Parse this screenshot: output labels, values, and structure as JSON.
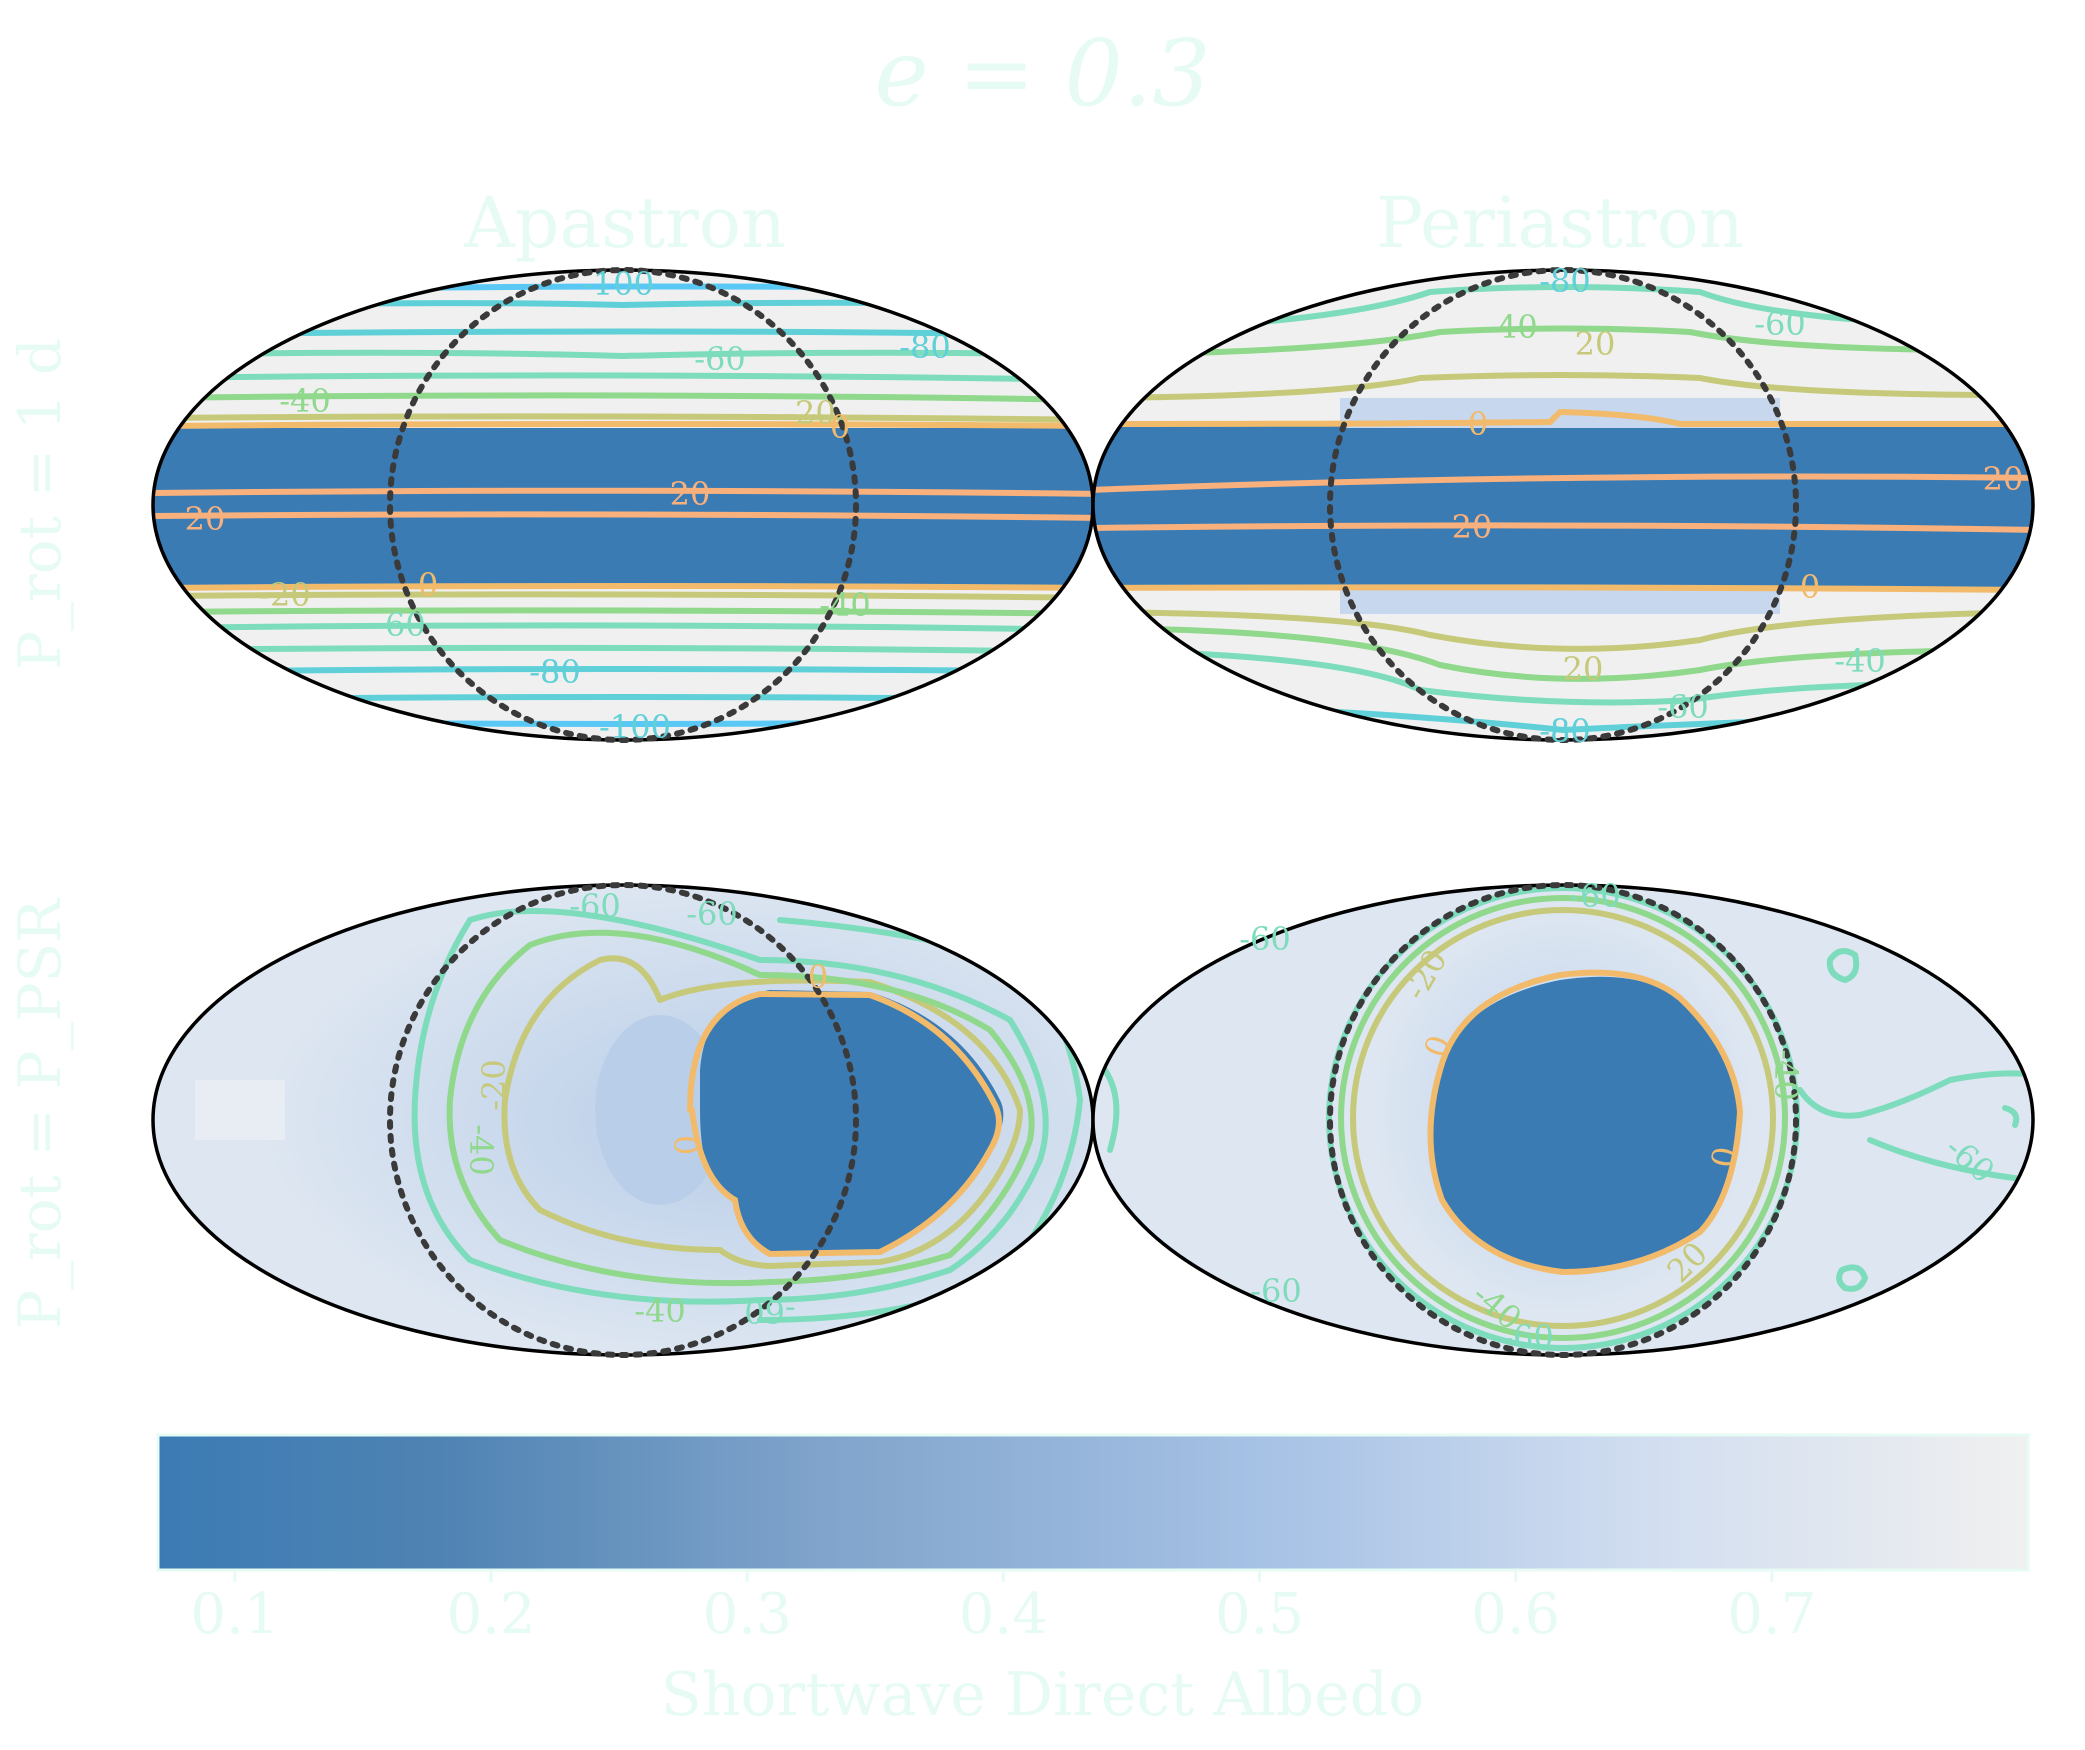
{
  "figure": {
    "title": "e = 0.3",
    "column_titles": [
      "Apastron",
      "Periastron"
    ],
    "row_labels": [
      "P_rot = 1 d",
      "P_rot = P_PSR"
    ]
  },
  "colors": {
    "ocean": "#3b7bb4",
    "ice": "#f0f0f0",
    "light_albedo": "#dde6f1",
    "text": "#e6fbf3",
    "contour_m100": "#5ac8f5",
    "contour_m80": "#5fd0d8",
    "contour_m60": "#7ddcbc",
    "contour_m40": "#8fd88c",
    "contour_m20": "#c7c97a",
    "contour_0": "#f2bb6c",
    "contour_20": "#f8b07c"
  },
  "chart_data": [
    {
      "type": "heatmap",
      "projection": "mollweide",
      "panel": "P_rot = 1 d, Apastron",
      "field": "Shortwave Direct Albedo",
      "overlay": "surface temperature contours",
      "contour_labels": [
        "-100",
        "-80",
        "-60",
        "-40",
        "-20",
        "0",
        "20",
        "20",
        "0",
        "-20",
        "-60",
        "-80",
        "-100",
        "-40"
      ]
    },
    {
      "type": "heatmap",
      "projection": "mollweide",
      "panel": "P_rot = 1 d, Periastron",
      "field": "Shortwave Direct Albedo",
      "overlay": "surface temperature contours",
      "contour_labels": [
        "-80",
        "-60",
        "-40",
        "20",
        "0",
        "20",
        "20",
        "0",
        "20",
        "-40",
        "-60",
        "-80"
      ]
    },
    {
      "type": "heatmap",
      "projection": "mollweide",
      "panel": "P_rot = P_PSR, Apastron",
      "field": "Shortwave Direct Albedo",
      "overlay": "surface temperature contours",
      "contour_labels": [
        "-60",
        "-60",
        "-20",
        "-40",
        "0",
        "-40",
        "-60",
        "0"
      ]
    },
    {
      "type": "heatmap",
      "projection": "mollweide",
      "panel": "P_rot = P_PSR, Periastron",
      "field": "Shortwave Direct Albedo",
      "overlay": "surface temperature contours",
      "contour_labels": [
        "-60",
        "-20",
        "0",
        "0",
        "-40",
        "-60",
        "-60",
        "20",
        "-40",
        "-60",
        "-60"
      ]
    }
  ],
  "colorbar": {
    "label": "Shortwave Direct Albedo",
    "ticks": [
      "0.1",
      "0.2",
      "0.3",
      "0.4",
      "0.5",
      "0.6",
      "0.7"
    ],
    "tick_values": [
      0.1,
      0.2,
      0.3,
      0.4,
      0.5,
      0.6,
      0.7
    ],
    "range": [
      0.07,
      0.8
    ]
  }
}
